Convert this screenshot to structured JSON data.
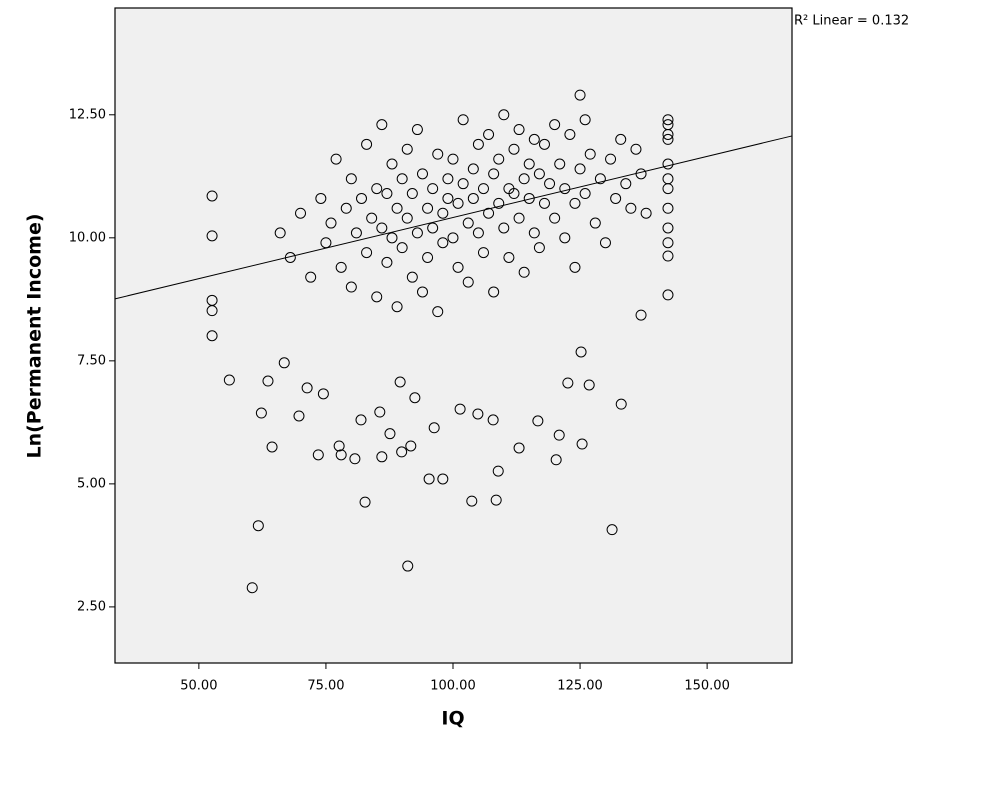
{
  "chart_data": {
    "type": "scatter",
    "x_label": "IQ",
    "y_label": "Ln(Permanent Income)",
    "annotation": "R² Linear = 0.132",
    "color": "#000000",
    "background": "#f0f0f0",
    "xlim": [
      33.5,
      166.7
    ],
    "ylim": [
      1.36,
      14.67
    ],
    "xticks": [
      {
        "value": 50,
        "label": "50.00"
      },
      {
        "value": 75,
        "label": "75.00"
      },
      {
        "value": 100,
        "label": "100.00"
      },
      {
        "value": 125,
        "label": "125.00"
      },
      {
        "value": 150,
        "label": "150.00"
      }
    ],
    "yticks": [
      {
        "value": 2.5,
        "label": "2.50"
      },
      {
        "value": 5,
        "label": "5.00"
      },
      {
        "value": 7.5,
        "label": "7.50"
      },
      {
        "value": 10,
        "label": "10.00"
      },
      {
        "value": 12.5,
        "label": "12.50"
      }
    ],
    "fit_line": {
      "x": [
        33.5,
        166.7
      ],
      "values": [
        8.76,
        12.07
      ]
    },
    "x": [
      52.6,
      52.6,
      52.6,
      52.6,
      52.6,
      56,
      60.5,
      61.7,
      62.3,
      64.4,
      63.6,
      66.8,
      69.7,
      71.3,
      73.5,
      74.5,
      77.6,
      78,
      80.7,
      81.9,
      82.7,
      85.6,
      86,
      87.6,
      89.6,
      89.9,
      91.1,
      91.7,
      92.5,
      95.3,
      96.3,
      98,
      101.4,
      103.7,
      104.9,
      107.9,
      108.5,
      108.9,
      113,
      116.7,
      120.3,
      120.9,
      122.6,
      125.2,
      125.4,
      126.8,
      131.3,
      133.1,
      137,
      142.3,
      142.3,
      142.3,
      125,
      142.3,
      142.3,
      142.3,
      142.3,
      142.3,
      142.3,
      142.3,
      142.3,
      142.3,
      66,
      68,
      70,
      72,
      74,
      75,
      76,
      77,
      78,
      79,
      80,
      80,
      81,
      82,
      83,
      83,
      84,
      85,
      85,
      86,
      86,
      87,
      87,
      88,
      88,
      89,
      89,
      90,
      90,
      91,
      91,
      92,
      92,
      93,
      93,
      94,
      94,
      95,
      95,
      96,
      96,
      97,
      97,
      98,
      98,
      99,
      99,
      100,
      100,
      101,
      101,
      102,
      102,
      103,
      103,
      104,
      104,
      105,
      105,
      106,
      106,
      107,
      107,
      108,
      108,
      109,
      109,
      110,
      110,
      111,
      111,
      112,
      112,
      113,
      113,
      114,
      114,
      115,
      115,
      116,
      116,
      117,
      117,
      118,
      118,
      119,
      120,
      120,
      121,
      122,
      122,
      123,
      124,
      124,
      125,
      126,
      126,
      127,
      128,
      129,
      130,
      131,
      132,
      133,
      134,
      135,
      136,
      137,
      138
    ],
    "values": [
      10.85,
      10.04,
      8.73,
      8.52,
      8.01,
      7.11,
      2.89,
      4.15,
      6.44,
      5.75,
      7.09,
      7.46,
      6.38,
      6.95,
      5.59,
      6.83,
      5.77,
      5.59,
      5.51,
      6.3,
      4.63,
      6.46,
      5.55,
      6.02,
      7.07,
      5.65,
      3.33,
      5.77,
      6.75,
      5.1,
      6.14,
      5.1,
      6.52,
      4.65,
      6.42,
      6.3,
      4.67,
      5.26,
      5.73,
      6.28,
      5.49,
      5.99,
      7.05,
      7.68,
      5.81,
      7.01,
      4.07,
      6.62,
      8.43,
      8.84,
      9.63,
      12.4,
      12.9,
      12.3,
      12.1,
      12.0,
      11.5,
      11.2,
      11.0,
      10.6,
      10.2,
      9.9,
      10.1,
      9.6,
      10.5,
      9.2,
      10.8,
      9.9,
      10.3,
      11.6,
      9.4,
      10.6,
      11.2,
      9.0,
      10.1,
      10.8,
      9.7,
      11.9,
      10.4,
      8.8,
      11.0,
      10.2,
      12.3,
      9.5,
      10.9,
      11.5,
      10.0,
      8.6,
      10.6,
      11.2,
      9.8,
      10.4,
      11.8,
      9.2,
      10.9,
      10.1,
      12.2,
      8.9,
      11.3,
      10.6,
      9.6,
      11.0,
      10.2,
      11.7,
      8.5,
      10.5,
      9.9,
      11.2,
      10.8,
      10.0,
      11.6,
      9.4,
      10.7,
      11.1,
      12.4,
      10.3,
      9.1,
      11.4,
      10.8,
      10.1,
      11.9,
      9.7,
      11.0,
      10.5,
      12.1,
      11.3,
      8.9,
      10.7,
      11.6,
      10.2,
      12.5,
      11.0,
      9.6,
      10.9,
      11.8,
      10.4,
      12.2,
      11.2,
      9.3,
      10.8,
      11.5,
      10.1,
      12.0,
      11.3,
      9.8,
      10.7,
      11.9,
      11.1,
      10.4,
      12.3,
      11.5,
      10.0,
      11.0,
      12.1,
      10.7,
      9.4,
      11.4,
      10.9,
      12.4,
      11.7,
      10.3,
      11.2,
      9.9,
      11.6,
      10.8,
      12.0,
      11.1,
      10.6,
      11.8,
      11.3,
      10.5
    ]
  }
}
